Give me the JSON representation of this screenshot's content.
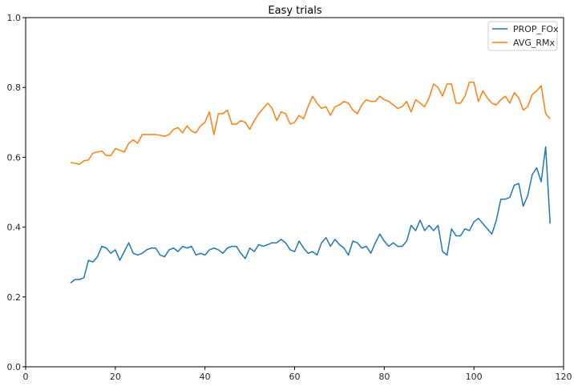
{
  "chart_data": {
    "type": "line",
    "title": "Easy trials",
    "xlabel": "",
    "ylabel": "",
    "xlim": [
      0,
      120
    ],
    "ylim": [
      0.0,
      1.0
    ],
    "xticks": [
      0,
      20,
      40,
      60,
      80,
      100,
      120
    ],
    "yticks": [
      0.0,
      0.2,
      0.4,
      0.6,
      0.8,
      1.0
    ],
    "grid": false,
    "legend_position": "top-right",
    "x": [
      10,
      11,
      12,
      13,
      14,
      15,
      16,
      17,
      18,
      19,
      20,
      21,
      22,
      23,
      24,
      25,
      26,
      27,
      28,
      29,
      30,
      31,
      32,
      33,
      34,
      35,
      36,
      37,
      38,
      39,
      40,
      41,
      42,
      43,
      44,
      45,
      46,
      47,
      48,
      49,
      50,
      51,
      52,
      53,
      54,
      55,
      56,
      57,
      58,
      59,
      60,
      61,
      62,
      63,
      64,
      65,
      66,
      67,
      68,
      69,
      70,
      71,
      72,
      73,
      74,
      75,
      76,
      77,
      78,
      79,
      80,
      81,
      82,
      83,
      84,
      85,
      86,
      87,
      88,
      89,
      90,
      91,
      92,
      93,
      94,
      95,
      96,
      97,
      98,
      99,
      100,
      101,
      102,
      103,
      104,
      105,
      106,
      107,
      108,
      109,
      110,
      111,
      112,
      113,
      114,
      115,
      116,
      117
    ],
    "series": [
      {
        "name": "PROP_FOx",
        "color": "#1f77b4",
        "values": [
          0.24,
          0.25,
          0.25,
          0.255,
          0.305,
          0.3,
          0.315,
          0.345,
          0.34,
          0.325,
          0.335,
          0.305,
          0.33,
          0.355,
          0.325,
          0.32,
          0.325,
          0.335,
          0.34,
          0.34,
          0.32,
          0.315,
          0.335,
          0.34,
          0.33,
          0.345,
          0.34,
          0.345,
          0.32,
          0.325,
          0.32,
          0.335,
          0.34,
          0.335,
          0.325,
          0.34,
          0.345,
          0.345,
          0.325,
          0.31,
          0.34,
          0.33,
          0.35,
          0.345,
          0.35,
          0.355,
          0.355,
          0.365,
          0.355,
          0.335,
          0.33,
          0.36,
          0.34,
          0.325,
          0.33,
          0.32,
          0.355,
          0.37,
          0.345,
          0.365,
          0.35,
          0.34,
          0.32,
          0.36,
          0.355,
          0.34,
          0.345,
          0.325,
          0.355,
          0.38,
          0.36,
          0.345,
          0.355,
          0.345,
          0.345,
          0.36,
          0.405,
          0.39,
          0.42,
          0.39,
          0.405,
          0.39,
          0.405,
          0.33,
          0.32,
          0.395,
          0.375,
          0.375,
          0.395,
          0.39,
          0.415,
          0.425,
          0.41,
          0.395,
          0.38,
          0.42,
          0.48,
          0.48,
          0.485,
          0.52,
          0.525,
          0.46,
          0.49,
          0.55,
          0.57,
          0.53,
          0.63,
          0.41
        ]
      },
      {
        "name": "AVG_RMx",
        "color": "#ff7f0e",
        "values": [
          0.585,
          0.583,
          0.58,
          0.59,
          0.592,
          0.612,
          0.615,
          0.618,
          0.605,
          0.605,
          0.625,
          0.62,
          0.615,
          0.64,
          0.65,
          0.64,
          0.665,
          0.665,
          0.665,
          0.665,
          0.663,
          0.66,
          0.665,
          0.68,
          0.685,
          0.67,
          0.69,
          0.675,
          0.67,
          0.69,
          0.7,
          0.73,
          0.665,
          0.725,
          0.725,
          0.735,
          0.695,
          0.695,
          0.705,
          0.7,
          0.68,
          0.705,
          0.725,
          0.74,
          0.755,
          0.74,
          0.705,
          0.73,
          0.725,
          0.695,
          0.7,
          0.72,
          0.71,
          0.745,
          0.775,
          0.755,
          0.74,
          0.745,
          0.72,
          0.745,
          0.75,
          0.76,
          0.755,
          0.735,
          0.725,
          0.75,
          0.765,
          0.76,
          0.76,
          0.775,
          0.765,
          0.76,
          0.75,
          0.74,
          0.745,
          0.76,
          0.73,
          0.765,
          0.755,
          0.745,
          0.77,
          0.81,
          0.8,
          0.775,
          0.81,
          0.81,
          0.755,
          0.755,
          0.775,
          0.815,
          0.815,
          0.76,
          0.79,
          0.77,
          0.755,
          0.75,
          0.765,
          0.775,
          0.755,
          0.785,
          0.77,
          0.735,
          0.745,
          0.78,
          0.79,
          0.805,
          0.725,
          0.71
        ]
      }
    ]
  }
}
